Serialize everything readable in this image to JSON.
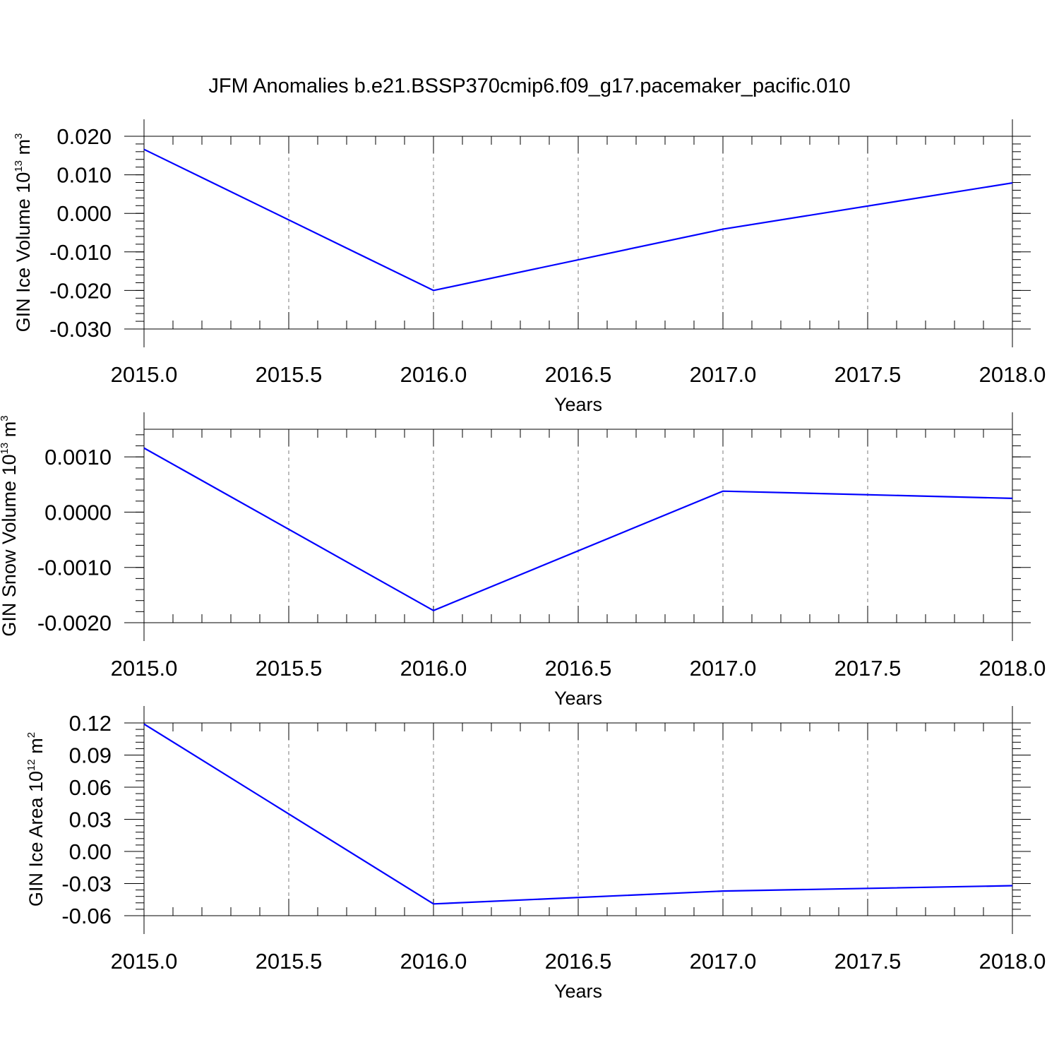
{
  "title": "JFM Anomalies b.e21.BSSP370cmip6.f09_g17.pacemaker_pacific.010",
  "chart_data": [
    {
      "type": "line",
      "ylabel": {
        "text": "GIN Ice Volume 10",
        "sup1": "13",
        "unit": " m",
        "sup2": "3"
      },
      "xlabel": "Years",
      "xlim": [
        2015.0,
        2018.0
      ],
      "ylim": [
        -0.03,
        0.02
      ],
      "x_ticks": [
        "2015.0",
        "2015.5",
        "2016.0",
        "2016.5",
        "2017.0",
        "2017.5",
        "2018.0"
      ],
      "y_ticks": [
        {
          "value": 0.02,
          "label": "0.020"
        },
        {
          "value": 0.01,
          "label": "0.010"
        },
        {
          "value": 0.0,
          "label": "0.000"
        },
        {
          "value": -0.01,
          "label": "-0.010"
        },
        {
          "value": -0.02,
          "label": "-0.020"
        },
        {
          "value": -0.03,
          "label": "-0.030"
        }
      ],
      "grid": "vertical dashed",
      "series": [
        {
          "color": "#0000ff",
          "x": [
            2015,
            2016,
            2017,
            2018
          ],
          "y": [
            0.0166,
            -0.02,
            -0.0041,
            0.0079
          ]
        }
      ]
    },
    {
      "type": "line",
      "ylabel": {
        "text": "GIN Snow Volume 10",
        "sup1": "13",
        "unit": " m",
        "sup2": "3"
      },
      "xlabel": "Years",
      "xlim": [
        2015.0,
        2018.0
      ],
      "ylim": [
        -0.002,
        0.0015
      ],
      "x_ticks": [
        "2015.0",
        "2015.5",
        "2016.0",
        "2016.5",
        "2017.0",
        "2017.5",
        "2018.0"
      ],
      "y_ticks": [
        {
          "value": 0.001,
          "label": "0.0010"
        },
        {
          "value": 0.0,
          "label": "0.0000"
        },
        {
          "value": -0.001,
          "label": "-0.0010"
        },
        {
          "value": -0.002,
          "label": "-0.0020"
        }
      ],
      "grid": "vertical dashed",
      "series": [
        {
          "color": "#0000ff",
          "x": [
            2015,
            2016,
            2017,
            2018
          ],
          "y": [
            0.00116,
            -0.00178,
            0.00038,
            0.00025
          ]
        }
      ]
    },
    {
      "type": "line",
      "ylabel": {
        "text": "GIN Ice Area 10",
        "sup1": "12",
        "unit": " m",
        "sup2": "2"
      },
      "xlabel": "Years",
      "xlim": [
        2015.0,
        2018.0
      ],
      "ylim": [
        -0.06,
        0.12
      ],
      "x_ticks": [
        "2015.0",
        "2015.5",
        "2016.0",
        "2016.5",
        "2017.0",
        "2017.5",
        "2018.0"
      ],
      "y_ticks": [
        {
          "value": 0.12,
          "label": "0.12"
        },
        {
          "value": 0.09,
          "label": "0.09"
        },
        {
          "value": 0.06,
          "label": "0.06"
        },
        {
          "value": 0.03,
          "label": "0.03"
        },
        {
          "value": 0.0,
          "label": "0.00"
        },
        {
          "value": -0.03,
          "label": "-0.03"
        },
        {
          "value": -0.06,
          "label": "-0.06"
        }
      ],
      "grid": "vertical dashed",
      "series": [
        {
          "color": "#0000ff",
          "x": [
            2015,
            2016,
            2017,
            2018
          ],
          "y": [
            0.119,
            -0.049,
            -0.037,
            -0.032
          ]
        }
      ]
    }
  ]
}
